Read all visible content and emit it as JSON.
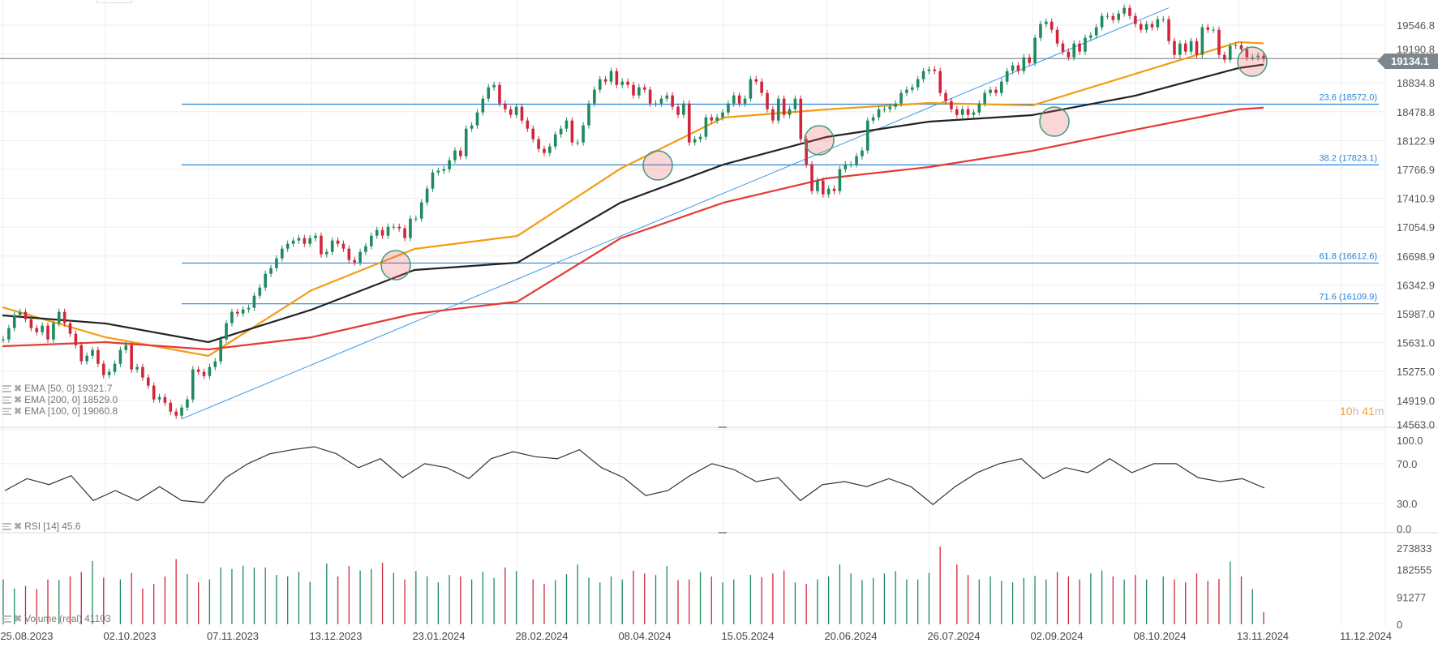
{
  "chart_data": {
    "type": "candlestick",
    "current_price": "19134.1",
    "price_axis": {
      "ticks": [
        "19546.8",
        "19190.8",
        "18834.8",
        "18478.8",
        "18122.9",
        "17766.9",
        "17410.9",
        "17054.9",
        "16698.9",
        "16342.9",
        "15987.0",
        "15631.0",
        "15275.0",
        "14919.0",
        "14563.0"
      ],
      "range": [
        14563.0,
        19546.8
      ]
    },
    "date_axis": {
      "ticks": [
        "25.08.2023",
        "02.10.2023",
        "07.11.2023",
        "13.12.2023",
        "23.01.2024",
        "28.02.2024",
        "08.04.2024",
        "15.05.2024",
        "20.06.2024",
        "26.07.2024",
        "02.09.2024",
        "08.10.2024",
        "13.11.2024",
        "11.12.2024"
      ]
    },
    "closes": [
      15670,
      15810,
      15970,
      16010,
      15920,
      15810,
      15760,
      15840,
      15670,
      15870,
      16010,
      15870,
      15740,
      15600,
      15400,
      15470,
      15540,
      15370,
      15230,
      15270,
      15370,
      15540,
      15600,
      15300,
      15330,
      15200,
      15100,
      14930,
      14960,
      14890,
      14780,
      14730,
      14830,
      14930,
      15300,
      15270,
      15220,
      15330,
      15400,
      15670,
      15870,
      16010,
      15990,
      16040,
      16060,
      16210,
      16310,
      16480,
      16550,
      16670,
      16790,
      16850,
      16890,
      16920,
      16850,
      16920,
      16950,
      16720,
      16750,
      16890,
      16850,
      16790,
      16650,
      16620,
      16750,
      16820,
      16950,
      17020,
      16950,
      17060,
      17060,
      17040,
      16920,
      17160,
      17160,
      17360,
      17530,
      17730,
      17750,
      17770,
      17880,
      18000,
      17930,
      18270,
      18310,
      18470,
      18640,
      18780,
      18810,
      18580,
      18510,
      18440,
      18540,
      18370,
      18270,
      18140,
      18020,
      17970,
      18050,
      18200,
      18270,
      18370,
      18100,
      18100,
      18310,
      18580,
      18750,
      18880,
      18850,
      18980,
      18810,
      18850,
      18810,
      18680,
      18780,
      18750,
      18580,
      18580,
      18640,
      18680,
      18540,
      18440,
      18580,
      18100,
      18140,
      18170,
      18410,
      18370,
      18410,
      18470,
      18580,
      18680,
      18580,
      18640,
      18880,
      18850,
      18710,
      18510,
      18370,
      18640,
      18440,
      18510,
      18640,
      18140,
      17830,
      17500,
      17630,
      17460,
      17530,
      17500,
      17770,
      17830,
      17830,
      17930,
      18000,
      18370,
      18410,
      18510,
      18510,
      18540,
      18580,
      18710,
      18750,
      18780,
      18880,
      18980,
      19000,
      18980,
      18710,
      18610,
      18510,
      18440,
      18510,
      18440,
      18470,
      18580,
      18710,
      18750,
      18710,
      18850,
      18980,
      19050,
      18980,
      19150,
      19080,
      19390,
      19560,
      19590,
      19490,
      19320,
      19220,
      19150,
      19320,
      19220,
      19390,
      19420,
      19520,
      19660,
      19660,
      19610,
      19690,
      19760,
      19660,
      19560,
      19490,
      19560,
      19520,
      19620,
      19620,
      19350,
      19180,
      19320,
      19220,
      19350,
      19180,
      19520,
      19490,
      19490,
      19180,
      19120,
      19290,
      19300,
      19250,
      19150,
      19150,
      19170,
      19134.1
    ],
    "ema": [
      {
        "name": "EMA [50, 0]",
        "value": "19321.7",
        "color": "#f39c12",
        "values": [
          16067,
          15697,
          15467,
          16277,
          16787,
          16947,
          17777,
          18407,
          18507,
          18587,
          18557,
          18947,
          19337,
          19321.7
        ]
      },
      {
        "name": "EMA [200, 0]",
        "value": "18529.0",
        "color": "#e53935",
        "values": [
          15587,
          15637,
          15547,
          15697,
          15987,
          16137,
          16917,
          17357,
          17657,
          17797,
          17997,
          18257,
          18507,
          18529.0
        ]
      },
      {
        "name": "EMA [100, 0]",
        "value": "19060.8",
        "color": "#222222",
        "values": [
          15967,
          15867,
          15637,
          16037,
          16527,
          16617,
          17357,
          17827,
          18167,
          18357,
          18437,
          18677,
          19017,
          19060.8
        ]
      }
    ],
    "fibonacci": [
      {
        "label": "23.6 (18572.0)",
        "price": 18572.0
      },
      {
        "label": "38.2 (17823.1)",
        "price": 17823.1
      },
      {
        "label": "61.8 (16612.6)",
        "price": 16612.6
      },
      {
        "label": "71.6 (16109.9)",
        "price": 16109.9
      }
    ],
    "fib_color": "#2a86d8",
    "trendline": {
      "from_price": 14730,
      "to_price": 19760
    },
    "highlight_circles": [
      "Dec 2023 pullback",
      "Apr 2024 pullback",
      "Jun 2024 pullback",
      "Sep 2024 pullback",
      "Nov 2024 pullback"
    ],
    "colors": {
      "up": "#1f8a5e",
      "down": "#d0263b"
    },
    "rsi": {
      "label": "RSI",
      "period": "[14]",
      "value": "45.6",
      "ticks": [
        "100.0",
        "70.0",
        "30.0",
        "0.0"
      ],
      "values": [
        43,
        55,
        49,
        58,
        33,
        43,
        33,
        47,
        33,
        31,
        56,
        70,
        80,
        84,
        87,
        80,
        66,
        75,
        56,
        70,
        66,
        55,
        75,
        82,
        77,
        75,
        84,
        66,
        56,
        38,
        43,
        58,
        70,
        64,
        52,
        56,
        33,
        49,
        52,
        47,
        55,
        47,
        29,
        47,
        61,
        70,
        75,
        55,
        66,
        61,
        75,
        61,
        70,
        70,
        56,
        52,
        55,
        45.6
      ]
    },
    "volume": {
      "label": "Volume",
      "type": "(real)",
      "value": "41103",
      "ticks": [
        "273833",
        "182555",
        "91277",
        "0"
      ],
      "max": 273833,
      "values": [
        150000,
        120000,
        128000,
        118000,
        150000,
        148000,
        160000,
        175000,
        212000,
        156000,
        150000,
        172000,
        120000,
        135000,
        160000,
        218000,
        168000,
        140000,
        150000,
        190000,
        185000,
        196000,
        190000,
        190000,
        165000,
        160000,
        176000,
        142000,
        203000,
        160000,
        195000,
        180000,
        185000,
        206000,
        172000,
        150000,
        178000,
        160000,
        140000,
        165000,
        160000,
        150000,
        176000,
        155000,
        190000,
        178000,
        150000,
        135000,
        148000,
        168000,
        200000,
        156000,
        140000,
        160000,
        150000,
        180000,
        170000,
        165000,
        195000,
        148000,
        150000,
        175000,
        160000,
        140000,
        150000,
        165000,
        158000,
        170000,
        180000,
        140000,
        135000,
        150000,
        160000,
        200000,
        170000,
        148000,
        155000,
        170000,
        178000,
        150000,
        150000,
        172000,
        260000,
        200000,
        165000,
        150000,
        160000,
        145000,
        140000,
        155000,
        162000,
        150000,
        175000,
        160000,
        150000,
        170000,
        180000,
        160000,
        150000,
        165000,
        150000,
        160000,
        150000,
        140000,
        170000,
        145000,
        152000,
        210000,
        160000,
        118000,
        41103
      ]
    }
  },
  "countdown": {
    "hours": "10",
    "h": "h",
    "minutes": "41",
    "m": "m"
  }
}
